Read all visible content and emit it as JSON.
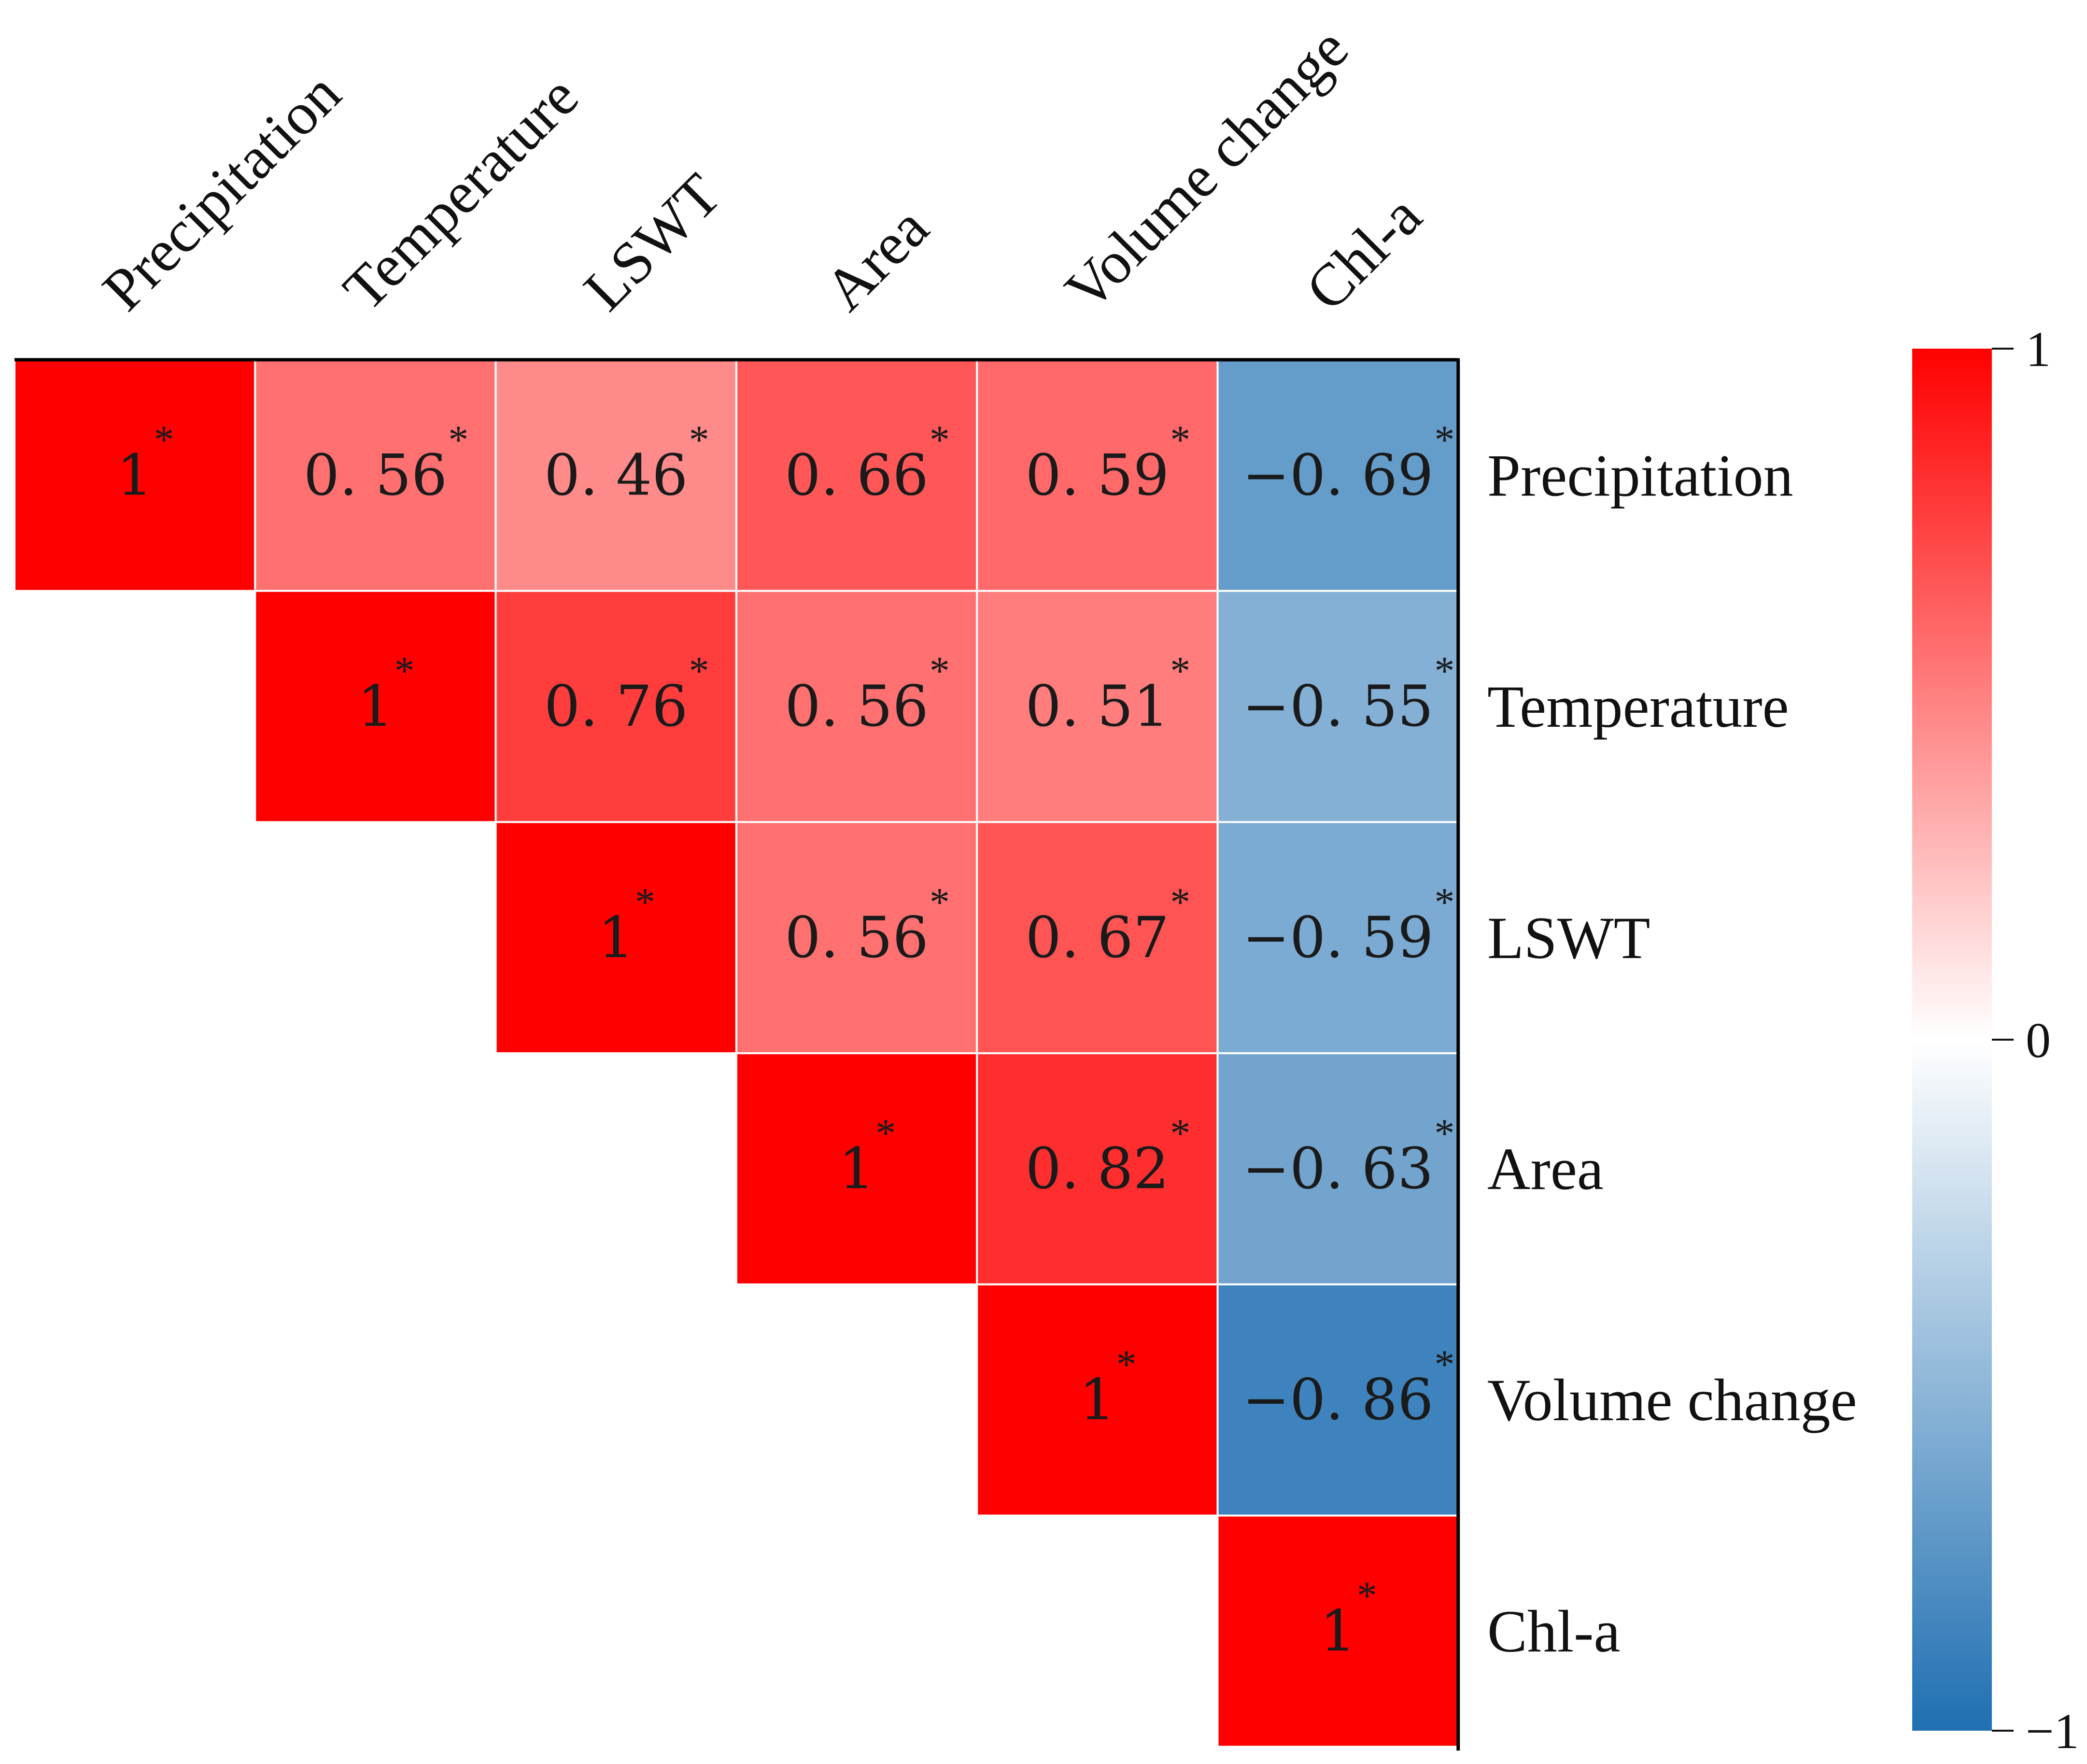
{
  "chart_data": {
    "type": "heatmap",
    "subtype": "upper-triangular correlation matrix",
    "variables": [
      "Precipitation",
      "Temperature",
      "LSWT",
      "Area",
      "Volume change",
      "Chl-a"
    ],
    "cells": [
      {
        "row": 0,
        "col": 0,
        "label": "1",
        "value": 1
      },
      {
        "row": 0,
        "col": 1,
        "label": "0. 56",
        "value": 0.56
      },
      {
        "row": 0,
        "col": 2,
        "label": "0. 46",
        "value": 0.46
      },
      {
        "row": 0,
        "col": 3,
        "label": "0. 66",
        "value": 0.66
      },
      {
        "row": 0,
        "col": 4,
        "label": "0. 59",
        "value": 0.59
      },
      {
        "row": 0,
        "col": 5,
        "label": "−0. 69",
        "value": -0.69
      },
      {
        "row": 1,
        "col": 1,
        "label": "1",
        "value": 1
      },
      {
        "row": 1,
        "col": 2,
        "label": "0. 76",
        "value": 0.76
      },
      {
        "row": 1,
        "col": 3,
        "label": "0. 56",
        "value": 0.56
      },
      {
        "row": 1,
        "col": 4,
        "label": "0. 51",
        "value": 0.51
      },
      {
        "row": 1,
        "col": 5,
        "label": "−0. 55",
        "value": -0.55
      },
      {
        "row": 2,
        "col": 2,
        "label": "1",
        "value": 1
      },
      {
        "row": 2,
        "col": 3,
        "label": "0. 56",
        "value": 0.56
      },
      {
        "row": 2,
        "col": 4,
        "label": "0. 67",
        "value": 0.67
      },
      {
        "row": 2,
        "col": 5,
        "label": "−0. 59",
        "value": -0.59
      },
      {
        "row": 3,
        "col": 3,
        "label": "1",
        "value": 1
      },
      {
        "row": 3,
        "col": 4,
        "label": "0. 82",
        "value": 0.82
      },
      {
        "row": 3,
        "col": 5,
        "label": "−0. 63",
        "value": -0.63
      },
      {
        "row": 4,
        "col": 4,
        "label": "1",
        "value": 1
      },
      {
        "row": 4,
        "col": 5,
        "label": "−0. 86",
        "value": -0.86
      },
      {
        "row": 5,
        "col": 5,
        "label": "1",
        "value": 1
      }
    ],
    "significance_marker": "*",
    "colorbar": {
      "range": [
        -1,
        1
      ],
      "ticks": [
        {
          "value": 1,
          "label": "1"
        },
        {
          "value": 0,
          "label": "0"
        },
        {
          "value": -1,
          "label": "−1"
        }
      ],
      "colors": {
        "low": "#1f6fb2",
        "mid": "#ffffff",
        "high": "#ff0000"
      }
    }
  }
}
